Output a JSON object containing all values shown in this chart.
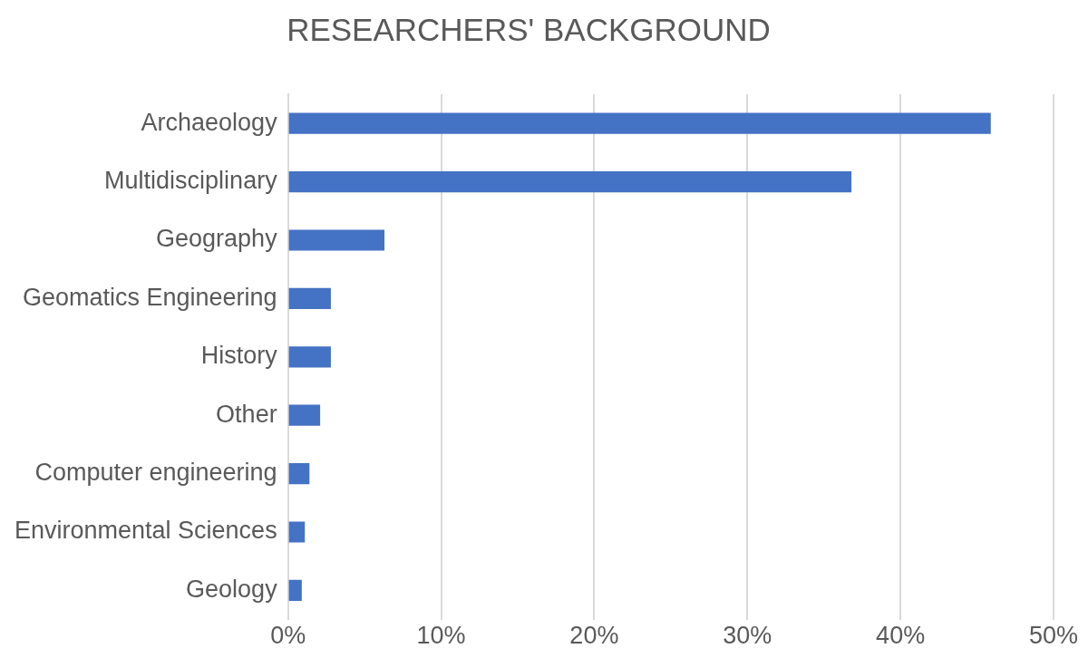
{
  "chart_data": {
    "type": "bar",
    "orientation": "horizontal",
    "title": "RESEARCHERS' BACKGROUND",
    "categories": [
      "Archaeology",
      "Multidisciplinary",
      "Geography",
      "Geomatics Engineering",
      "History",
      "Other",
      "Computer engineering",
      "Environmental Sciences",
      "Geology"
    ],
    "values": [
      45.9,
      36.8,
      6.3,
      2.8,
      2.8,
      2.1,
      1.4,
      1.1,
      0.9
    ],
    "color": "#4472c4",
    "xlim": [
      0,
      50
    ],
    "xticks": [
      {
        "value": 0,
        "label": "0%"
      },
      {
        "value": 10,
        "label": "10%"
      },
      {
        "value": 20,
        "label": "20%"
      },
      {
        "value": 30,
        "label": "30%"
      },
      {
        "value": 40,
        "label": "40%"
      },
      {
        "value": 50,
        "label": "50%"
      }
    ],
    "grid": "x",
    "legend": false
  }
}
